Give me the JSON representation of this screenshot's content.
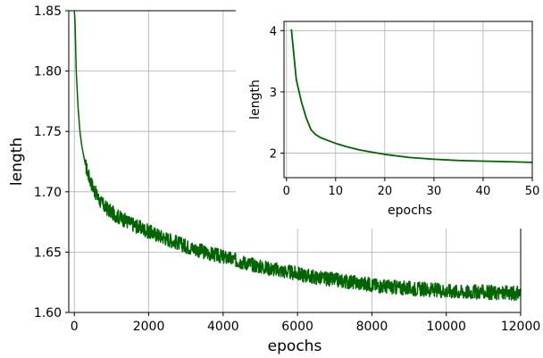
{
  "chart_data": [
    {
      "type": "line",
      "xlabel": "epochs",
      "ylabel": "length",
      "xlim": [
        -150,
        12000
      ],
      "ylim": [
        1.6,
        1.85
      ],
      "xticks": [
        0,
        2000,
        4000,
        6000,
        8000,
        10000,
        12000
      ],
      "xtick_labels": [
        "0",
        "2000",
        "4000",
        "6000",
        "8000",
        "10000",
        "12000"
      ],
      "yticks": [
        1.6,
        1.65,
        1.7,
        1.75,
        1.8,
        1.85
      ],
      "ytick_labels": [
        "1.60",
        "1.65",
        "1.70",
        "1.75",
        "1.80",
        "1.85"
      ],
      "grid": true,
      "series": [
        {
          "color": "#006400",
          "x": [
            0,
            20,
            50,
            100,
            150,
            200,
            300,
            400,
            500,
            600,
            700,
            800,
            1000,
            1200,
            1500,
            2000,
            2500,
            3000,
            3500,
            4000,
            4500,
            5000,
            5500,
            6000,
            6500,
            7000,
            7500,
            8000,
            8500,
            9000,
            9500,
            10000,
            10500,
            11000,
            11500,
            12000
          ],
          "values": [
            1.85,
            1.84,
            1.8,
            1.77,
            1.75,
            1.738,
            1.722,
            1.712,
            1.704,
            1.697,
            1.692,
            1.688,
            1.683,
            1.679,
            1.674,
            1.667,
            1.661,
            1.655,
            1.65,
            1.646,
            1.642,
            1.638,
            1.635,
            1.632,
            1.629,
            1.627,
            1.625,
            1.623,
            1.621,
            1.62,
            1.619,
            1.618,
            1.617,
            1.617,
            1.616,
            1.616
          ],
          "noise_band": 0.006
        }
      ]
    },
    {
      "type": "line",
      "xlabel": "epochs",
      "ylabel": "length",
      "xlim": [
        -0.5,
        50
      ],
      "ylim": [
        1.6,
        4.15
      ],
      "xticks": [
        0,
        10,
        20,
        30,
        40,
        50
      ],
      "xtick_labels": [
        "0",
        "10",
        "20",
        "30",
        "40",
        "50"
      ],
      "yticks": [
        2,
        3,
        4
      ],
      "ytick_labels": [
        "2",
        "3",
        "4"
      ],
      "grid": true,
      "series": [
        {
          "color": "#006400",
          "x": [
            1,
            2,
            3,
            4,
            5,
            6,
            7,
            8,
            10,
            12,
            15,
            20,
            25,
            30,
            35,
            40,
            45,
            50
          ],
          "values": [
            4.02,
            3.2,
            2.85,
            2.58,
            2.38,
            2.3,
            2.25,
            2.22,
            2.16,
            2.11,
            2.05,
            1.98,
            1.93,
            1.9,
            1.88,
            1.87,
            1.86,
            1.85
          ]
        }
      ]
    }
  ]
}
